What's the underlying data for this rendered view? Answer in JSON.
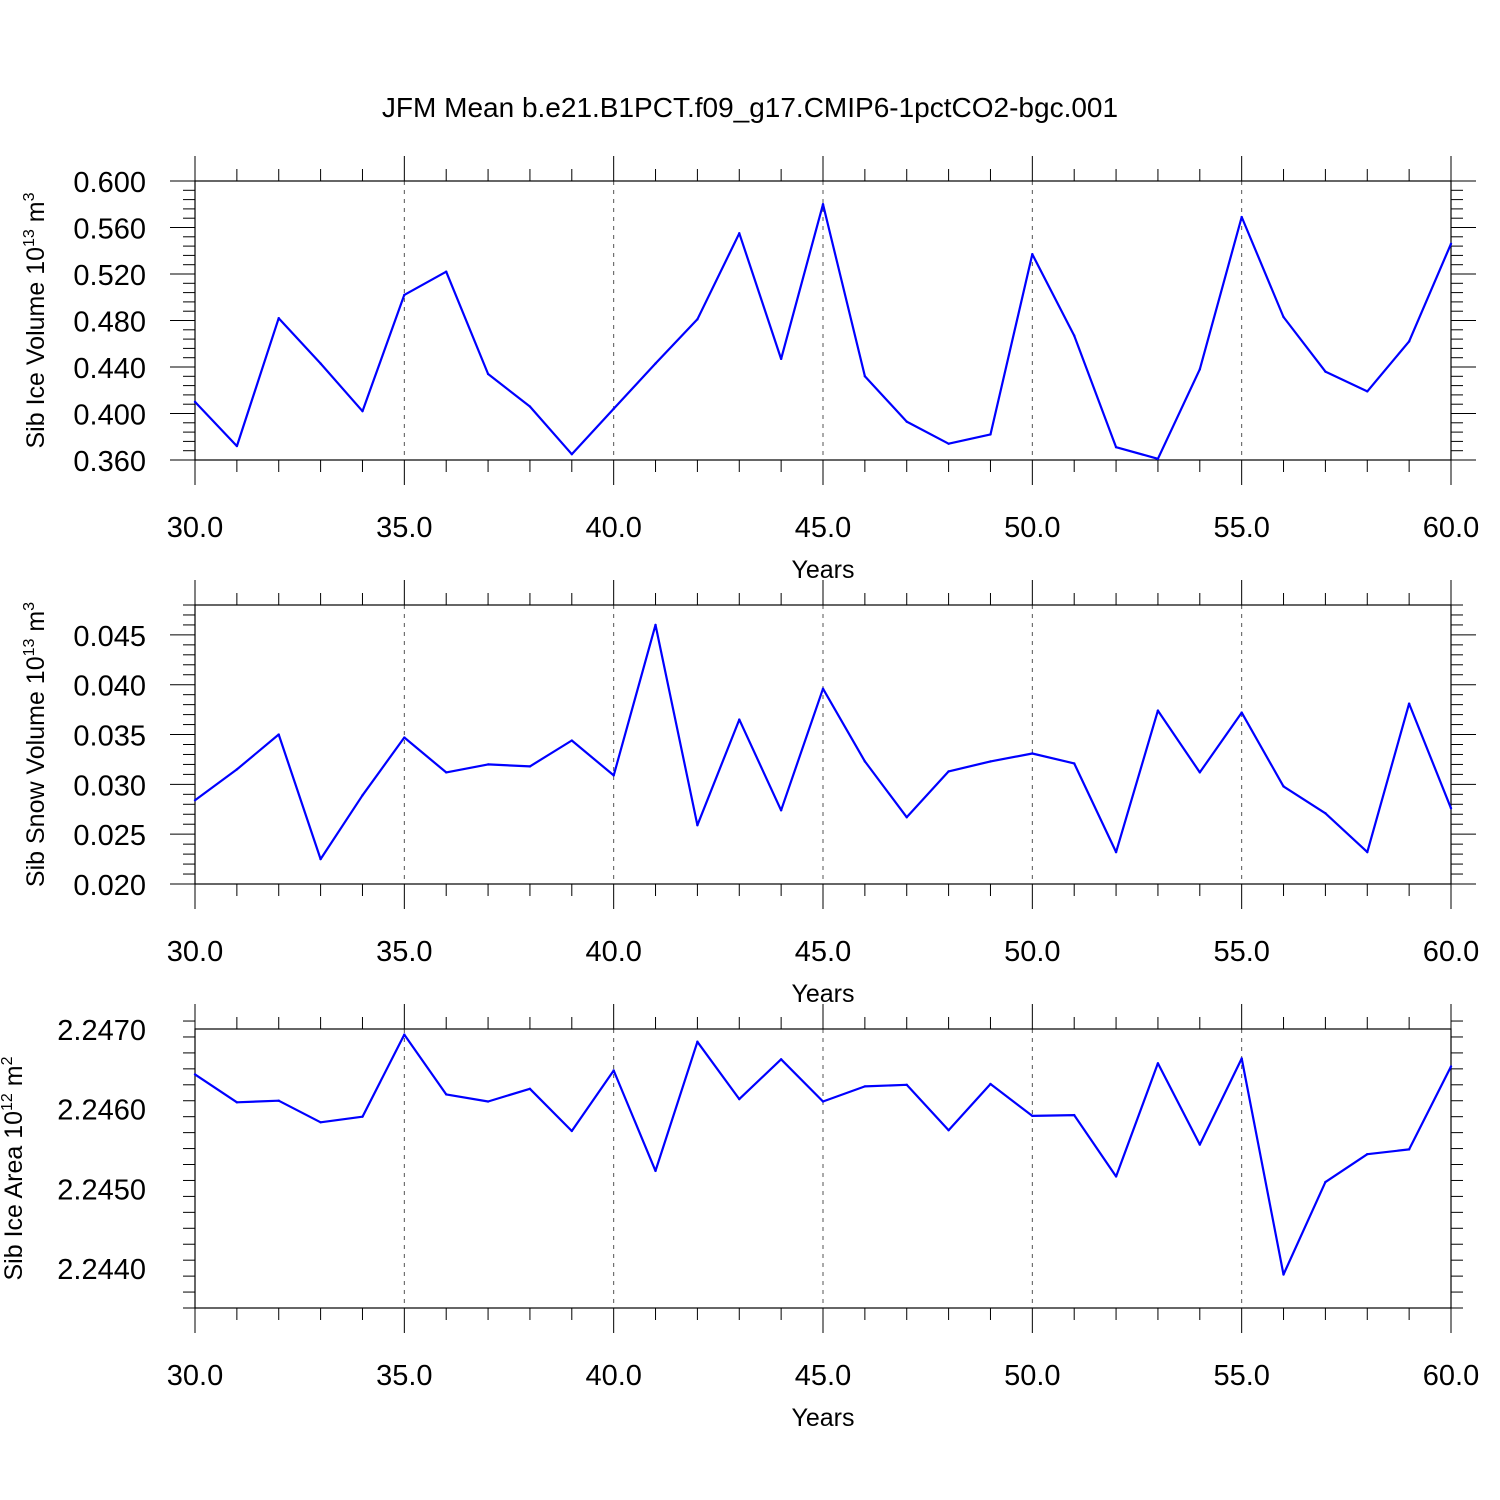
{
  "title": "JFM Mean b.e21.B1PCT.f09_g17.CMIP6-1pctCO2-bgc.001",
  "chart_data": [
    {
      "type": "line",
      "ylabel": "Sib Ice Volume",
      "ylabel_unit": "10",
      "ylabel_exp": "13",
      "ylabel_unit_tail": "m",
      "ylabel_unit_exp": "3",
      "xlabel": "Years",
      "xlim": [
        30,
        60
      ],
      "ylim": [
        0.36,
        0.6
      ],
      "xticks": [
        30,
        35,
        40,
        45,
        50,
        55,
        60
      ],
      "xtick_labels": [
        "30.0",
        "35.0",
        "40.0",
        "45.0",
        "50.0",
        "55.0",
        "60.0"
      ],
      "yticks": [
        0.36,
        0.4,
        0.44,
        0.48,
        0.52,
        0.56,
        0.6
      ],
      "ytick_labels": [
        "0.360",
        "0.400",
        "0.440",
        "0.480",
        "0.520",
        "0.560",
        "0.600"
      ],
      "grid": "dashed vertical at major x ticks",
      "series": [
        {
          "color": "#0000ff",
          "x": [
            30,
            31,
            32,
            33,
            34,
            35,
            36,
            37,
            38,
            39,
            40,
            41,
            42,
            43,
            44,
            45,
            46,
            47,
            48,
            49,
            50,
            51,
            52,
            53,
            54,
            55,
            56,
            57,
            58,
            59,
            60
          ],
          "values": [
            0.41,
            0.372,
            0.482,
            0.443,
            0.402,
            0.502,
            0.522,
            0.434,
            0.406,
            0.365,
            0.404,
            0.443,
            0.481,
            0.555,
            0.447,
            0.58,
            0.432,
            0.393,
            0.374,
            0.382,
            0.537,
            0.467,
            0.371,
            0.361,
            0.438,
            0.569,
            0.483,
            0.436,
            0.419,
            0.462,
            0.546
          ]
        }
      ]
    },
    {
      "type": "line",
      "ylabel": "Sib Snow Volume",
      "ylabel_unit": "10",
      "ylabel_exp": "13",
      "ylabel_unit_tail": "m",
      "ylabel_unit_exp": "3",
      "xlabel": "Years",
      "xlim": [
        30,
        60
      ],
      "ylim": [
        0.02,
        0.048
      ],
      "xticks": [
        30,
        35,
        40,
        45,
        50,
        55,
        60
      ],
      "xtick_labels": [
        "30.0",
        "35.0",
        "40.0",
        "45.0",
        "50.0",
        "55.0",
        "60.0"
      ],
      "yticks": [
        0.02,
        0.025,
        0.03,
        0.035,
        0.04,
        0.045
      ],
      "ytick_labels": [
        "0.020",
        "0.025",
        "0.030",
        "0.035",
        "0.040",
        "0.045"
      ],
      "grid": "dashed vertical at major x ticks",
      "series": [
        {
          "color": "#0000ff",
          "x": [
            30,
            31,
            32,
            33,
            34,
            35,
            36,
            37,
            38,
            39,
            40,
            41,
            42,
            43,
            44,
            45,
            46,
            47,
            48,
            49,
            50,
            51,
            52,
            53,
            54,
            55,
            56,
            57,
            58,
            59,
            60
          ],
          "values": [
            0.0284,
            0.0315,
            0.035,
            0.0225,
            0.0289,
            0.0347,
            0.0312,
            0.032,
            0.0318,
            0.0344,
            0.0309,
            0.046,
            0.0259,
            0.0365,
            0.0274,
            0.0396,
            0.0323,
            0.0267,
            0.0313,
            0.0323,
            0.0331,
            0.0321,
            0.0232,
            0.0374,
            0.0312,
            0.0372,
            0.0298,
            0.0271,
            0.0232,
            0.0381,
            0.0276
          ]
        }
      ]
    },
    {
      "type": "line",
      "ylabel": "Sib Ice Area",
      "ylabel_unit": "10",
      "ylabel_exp": "12",
      "ylabel_unit_tail": "m",
      "ylabel_unit_exp": "2",
      "xlabel": "Years",
      "xlim": [
        30,
        60
      ],
      "ylim": [
        2.2435,
        2.247
      ],
      "xticks": [
        30,
        35,
        40,
        45,
        50,
        55,
        60
      ],
      "xtick_labels": [
        "30.0",
        "35.0",
        "40.0",
        "45.0",
        "50.0",
        "55.0",
        "60.0"
      ],
      "yticks": [
        2.244,
        2.245,
        2.246,
        2.247
      ],
      "ytick_labels": [
        "2.2440",
        "2.2450",
        "2.2460",
        "2.2470"
      ],
      "grid": "dashed vertical at major x ticks",
      "series": [
        {
          "color": "#0000ff",
          "x": [
            30,
            31,
            32,
            33,
            34,
            35,
            36,
            37,
            38,
            39,
            40,
            41,
            42,
            43,
            44,
            45,
            46,
            47,
            48,
            49,
            50,
            51,
            52,
            53,
            54,
            55,
            56,
            57,
            58,
            59,
            60
          ],
          "values": [
            2.24643,
            2.24608,
            2.2461,
            2.24583,
            2.2459,
            2.24693,
            2.24618,
            2.24609,
            2.24625,
            2.24572,
            2.24648,
            2.24522,
            2.24684,
            2.24612,
            2.24662,
            2.24609,
            2.24628,
            2.2463,
            2.24573,
            2.24631,
            2.24591,
            2.24592,
            2.24515,
            2.24657,
            2.24555,
            2.24663,
            2.24392,
            2.24508,
            2.24543,
            2.24549,
            2.24653
          ]
        }
      ]
    }
  ]
}
